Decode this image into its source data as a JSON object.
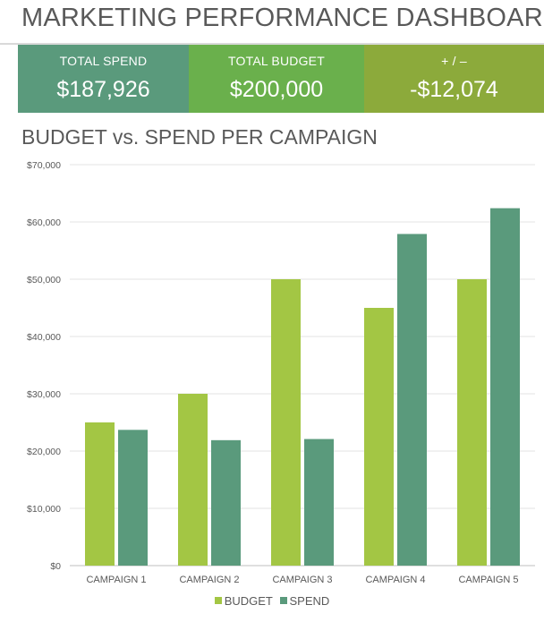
{
  "header": {
    "title": "MARKETING PERFORMANCE DASHBOARD"
  },
  "kpis": [
    {
      "label": "TOTAL SPEND",
      "value": "$187,926",
      "color": "#5a9a7c"
    },
    {
      "label": "TOTAL BUDGET",
      "value": "$200,000",
      "color": "#6ab04c"
    },
    {
      "label": "+ / –",
      "value": "-$12,074",
      "color": "#8caa3b"
    }
  ],
  "chart_data": {
    "type": "bar",
    "title": "BUDGET vs. SPEND PER CAMPAIGN",
    "categories": [
      "CAMPAIGN 1",
      "CAMPAIGN 2",
      "CAMPAIGN 3",
      "CAMPAIGN 4",
      "CAMPAIGN 5"
    ],
    "series": [
      {
        "name": "BUDGET",
        "color": "#a3c644",
        "values": [
          25000,
          30000,
          50000,
          45000,
          50000
        ]
      },
      {
        "name": "SPEND",
        "color": "#5a9a7c",
        "values": [
          23700,
          21900,
          22100,
          57900,
          62400
        ]
      }
    ],
    "ylim": [
      0,
      70000
    ],
    "yticks": [
      0,
      10000,
      20000,
      30000,
      40000,
      50000,
      60000,
      70000
    ],
    "ytick_labels": [
      "$0",
      "$10,000",
      "$20,000",
      "$30,000",
      "$40,000",
      "$50,000",
      "$60,000",
      "$70,000"
    ],
    "grid": true,
    "legend_position": "bottom-center",
    "xlabel": "",
    "ylabel": ""
  }
}
